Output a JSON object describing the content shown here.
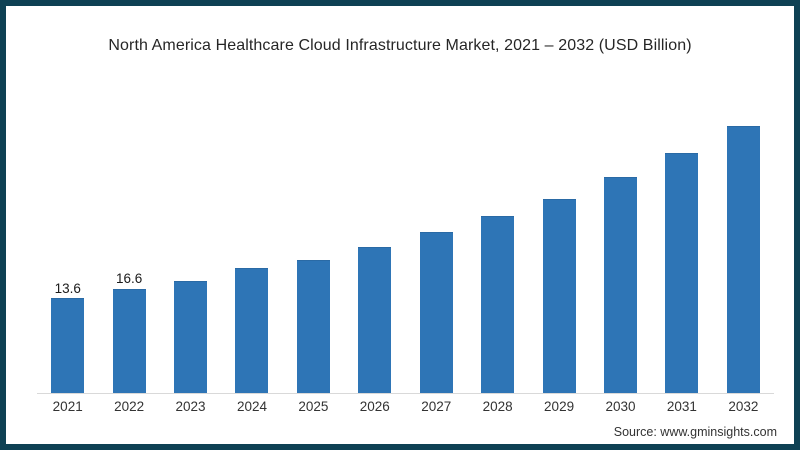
{
  "frame": {
    "border_color": "#0e4154",
    "background": "#ffffff"
  },
  "source": {
    "label": "Source: www.gminsights.com"
  },
  "chart_data": {
    "type": "bar",
    "title": "North America Healthcare Cloud Infrastructure Market, 2021 – 2032 (USD Billion)",
    "unit": "USD Billion",
    "categories": [
      "2021",
      "2022",
      "2023",
      "2024",
      "2025",
      "2026",
      "2027",
      "2028",
      "2029",
      "2030",
      "2031",
      "2032"
    ],
    "values": [
      13.6,
      16.6,
      19.2,
      23.1,
      25.9,
      29.8,
      34.6,
      39.7,
      45.4,
      52.4,
      60.1,
      68.7
    ],
    "value_labels": {
      "2021": "13.6",
      "2022": "16.6"
    },
    "bar_color": "#2e75b6",
    "xlabel": "",
    "ylabel": "",
    "y_axis_visible": false,
    "grid": false,
    "legend": "none"
  }
}
